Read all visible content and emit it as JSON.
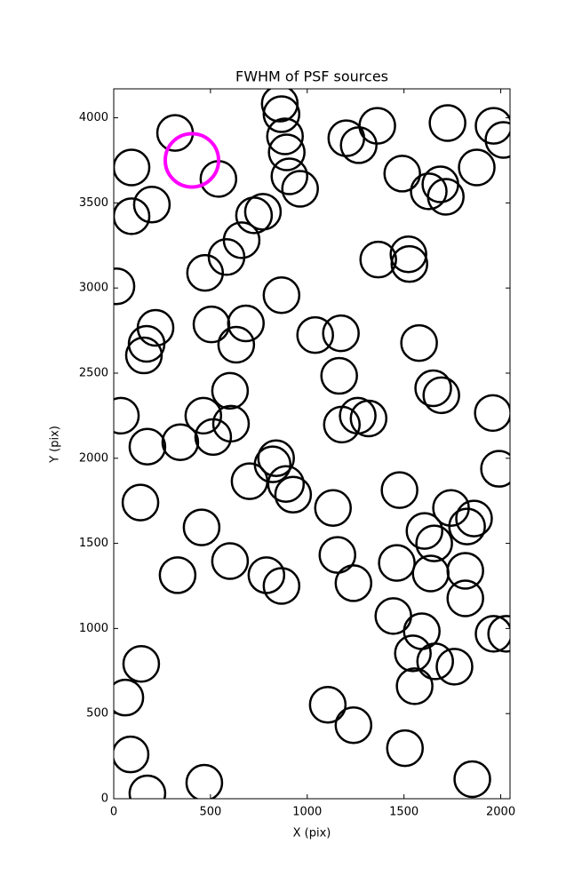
{
  "chart_data": {
    "type": "scatter",
    "title": "FWHM of PSF sources",
    "x_label": "X (pix)",
    "y_label": "Y (pix)",
    "xlim": [
      0,
      2048
    ],
    "ylim": [
      0,
      4170
    ],
    "xticks": [
      0,
      500,
      1000,
      1500,
      2000
    ],
    "yticks": [
      0,
      500,
      1000,
      1500,
      2000,
      2500,
      3000,
      3500,
      4000
    ],
    "series": [
      {
        "color": "#000000",
        "x": [
          317,
          92,
          92,
          197,
          541,
          858,
          867,
          885,
          894,
          908,
          963,
          1202,
          1266,
          1362,
          1491,
          1628,
          1688,
          1716,
          1725,
          1876,
          1963,
          2014,
          725,
          771,
          583,
          661,
          472,
          14,
          867,
          216,
          170,
          156,
          505,
          683,
          633,
          1041,
          1174,
          1165,
          1523,
          1528,
          1367,
          1578,
          1651,
          1693,
          601,
          37,
          463,
          606,
          514,
          344,
          174,
          702,
          839,
          821,
          890,
          927,
          1179,
          1261,
          1317,
          1959,
          1991,
          1477,
          1133,
          138,
          454,
          1606,
          1656,
          1743,
          1862,
          1826,
          601,
          330,
          789,
          867,
          1156,
          1239,
          1463,
          1638,
          1817,
          1817,
          1445,
          1592,
          1546,
          1661,
          1761,
          1963,
          2028,
          142,
          60,
          1555,
          1106,
          1239,
          1505,
          87,
          174,
          468,
          1853
        ],
        "y": [
          3911,
          3708,
          3422,
          3490,
          3641,
          4083,
          4021,
          3891,
          3797,
          3656,
          3583,
          3880,
          3839,
          3953,
          3672,
          3568,
          3609,
          3536,
          3969,
          3708,
          3953,
          3870,
          3427,
          3448,
          3182,
          3281,
          3089,
          3010,
          2958,
          2766,
          2672,
          2604,
          2786,
          2792,
          2667,
          2724,
          2734,
          2484,
          3198,
          3141,
          3167,
          2677,
          2411,
          2370,
          2396,
          2250,
          2250,
          2203,
          2125,
          2094,
          2068,
          1865,
          2000,
          1964,
          1849,
          1786,
          2198,
          2250,
          2234,
          2266,
          1938,
          1813,
          1708,
          1740,
          1594,
          1573,
          1500,
          1708,
          1646,
          1599,
          1396,
          1313,
          1313,
          1250,
          1432,
          1266,
          1385,
          1323,
          1339,
          1177,
          1073,
          984,
          854,
          807,
          776,
          969,
          969,
          792,
          594,
          661,
          552,
          432,
          297,
          260,
          31,
          94,
          115
        ]
      },
      {
        "color": "#ff00ff",
        "x": [
          404
        ],
        "y": [
          3750
        ]
      }
    ]
  }
}
